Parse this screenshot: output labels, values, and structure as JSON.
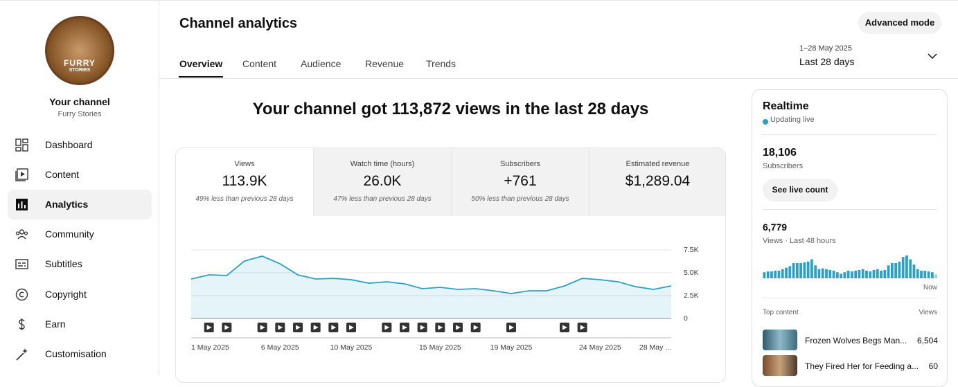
{
  "sidebar": {
    "avatar_text": [
      "FURRY",
      "STORIES"
    ],
    "channel_label": "Your channel",
    "channel_name": "Furry Stories",
    "nav": [
      "Dashboard",
      "Content",
      "Analytics",
      "Community",
      "Subtitles",
      "Copyright",
      "Earn",
      "Customisation"
    ],
    "active_nav": 2
  },
  "header": {
    "title": "Channel analytics",
    "tabs": [
      "Overview",
      "Content",
      "Audience",
      "Revenue",
      "Trends"
    ],
    "active_tab": 0,
    "date_range": "1–28 May 2025",
    "period": "Last 28 days",
    "button": "Advanced mode"
  },
  "headline": "Your channel got 113,872 views in the last 28 days",
  "metrics": [
    {
      "label": "Views",
      "value": "113.9K",
      "note": "49% less than previous 28 days"
    },
    {
      "label": "Watch time (hours)",
      "value": "26.0K",
      "note": "47% less than previous 28 days"
    },
    {
      "label": "Subscribers",
      "value": "+761",
      "note": "50% less than previous 28 days"
    },
    {
      "label": "Estimated revenue",
      "value": "$1,289.04"
    }
  ],
  "chart_data": {
    "type": "line",
    "color": "#2ba1c9",
    "categories": [
      "1 May 2025",
      null,
      null,
      null,
      null,
      "6 May 2025",
      null,
      null,
      null,
      "10 May 2025",
      null,
      null,
      null,
      null,
      "15 May 2025",
      null,
      null,
      null,
      "19 May 2025",
      null,
      null,
      null,
      null,
      "24 May 2025",
      null,
      null,
      null,
      "28 May ..."
    ],
    "values": [
      4320,
      4770,
      4700,
      6290,
      6820,
      5980,
      4770,
      4320,
      4390,
      4240,
      3860,
      4010,
      3790,
      3260,
      3410,
      3180,
      3260,
      3030,
      2730,
      3030,
      3030,
      3560,
      4390,
      4240,
      4010,
      3480,
      3180,
      3560
    ],
    "ylim": [
      0,
      7500
    ],
    "yticks": [
      0,
      {
        "value": 2500,
        "label": "2.5K"
      },
      {
        "value": 5000,
        "label": "5.0K"
      },
      {
        "value": 7500,
        "label": "7.5K"
      }
    ],
    "grid": true
  },
  "realtime": {
    "title": "Realtime",
    "status": "Updating live",
    "subscribers": "18,106",
    "subscribers_label": "Subscribers",
    "button": "See live count",
    "views": "6,779",
    "views_label": "Views · Last 48 hours",
    "now_label": "Now",
    "color": "#2ba1c9",
    "values": [
      80,
      90,
      90,
      100,
      100,
      120,
      140,
      160,
      200,
      200,
      200,
      210,
      220,
      250,
      170,
      120,
      130,
      120,
      110,
      100,
      80,
      60,
      80,
      100,
      90,
      100,
      110,
      120,
      100,
      90,
      110,
      120,
      100,
      110,
      170,
      200,
      200,
      220,
      280,
      300,
      250,
      180,
      120,
      100,
      100,
      90,
      80,
      50
    ],
    "top_content_label": "Top content",
    "views_column": "Views",
    "top_content": [
      {
        "title": "Frozen Wolves Begs Man...",
        "views": "6,504"
      },
      {
        "title": "They Fired Her for Feeding a...",
        "views": "60"
      }
    ]
  }
}
